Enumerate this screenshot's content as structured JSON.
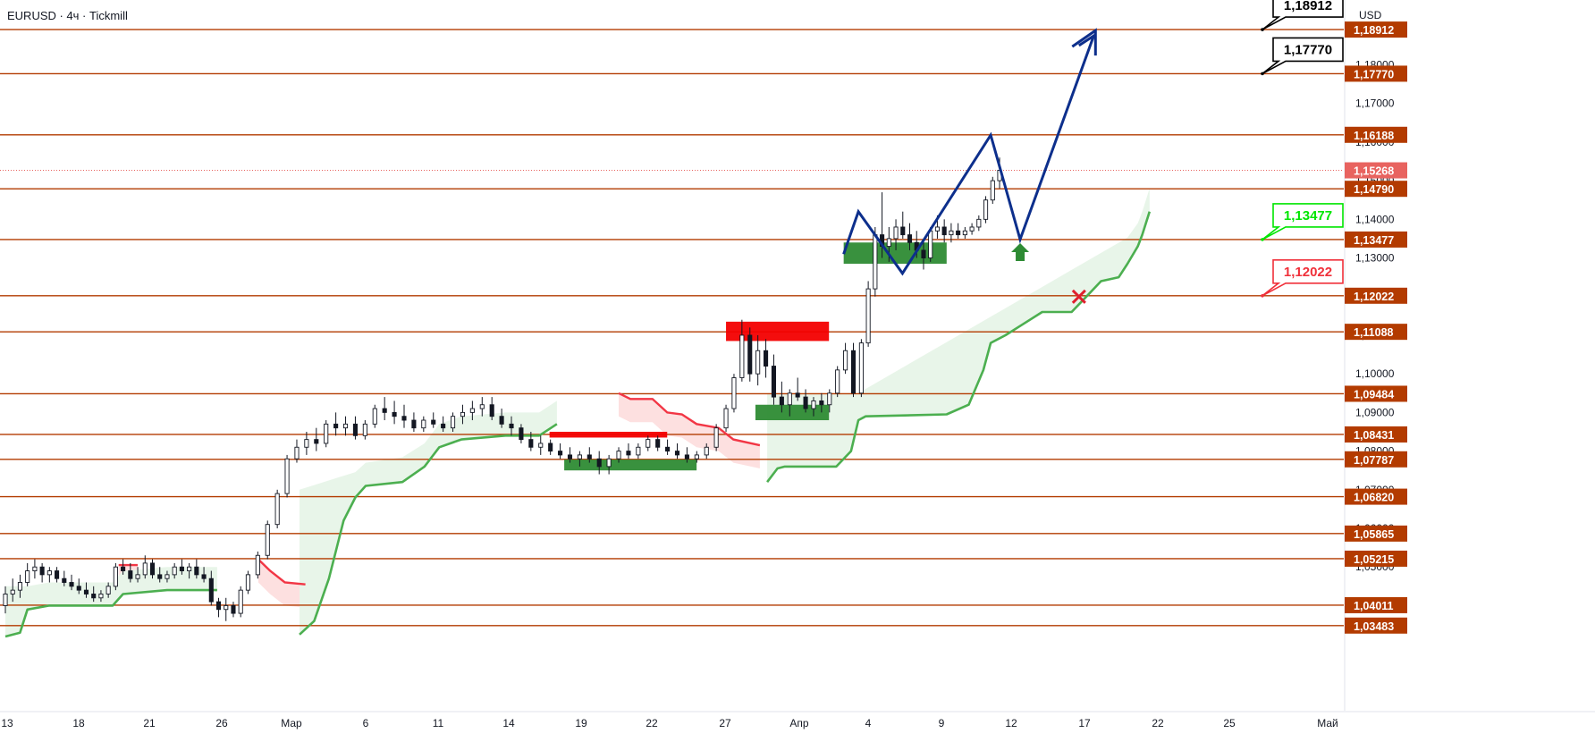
{
  "header": {
    "title": "EURUSD · 4ч · Tickmill",
    "currency": "USD"
  },
  "colors": {
    "level_line": "#b33b00",
    "level_tag_bg": "#b33b00",
    "price_tag_bg": "#e8635f",
    "bull": "#26a69a",
    "bear": "#ef5350",
    "candle_bull": "#ffffff",
    "candle_bear": "#131722",
    "supertrend_up": "#4caf50",
    "supertrend_down": "#f23645",
    "supertrend_up_fill": "#e8f5e9",
    "supertrend_down_fill": "#fde0e0",
    "zone_supply": "#f30000",
    "zone_demand": "#2e8b34",
    "projection": "#0d2f8c",
    "target_callout": "#000000",
    "support_callout": "#00e600",
    "stop_callout": "#f0303a",
    "axis_text": "#131722"
  },
  "chart_data": {
    "type": "candlestick",
    "symbol": "EURUSD",
    "timeframe": "4ч",
    "broker": "Tickmill",
    "y_axis": {
      "min": 1.032,
      "max": 1.194,
      "ticks": [
        "1,18000",
        "1,17000",
        "1,16000",
        "1,15000",
        "1,14000",
        "1,13000",
        "1,12000",
        "1,11000",
        "1,10000",
        "1,09000",
        "1,08000",
        "1,07000",
        "1,06000",
        "1,05000",
        "1,04000"
      ]
    },
    "x_axis": {
      "labels": [
        {
          "label": "13",
          "date": "2025-02-13"
        },
        {
          "label": "18",
          "date": "2025-02-18"
        },
        {
          "label": "21",
          "date": "2025-02-21"
        },
        {
          "label": "26",
          "date": "2025-02-26"
        },
        {
          "label": "Мар",
          "date": "2025-03-01"
        },
        {
          "label": "6",
          "date": "2025-03-06"
        },
        {
          "label": "11",
          "date": "2025-03-11"
        },
        {
          "label": "14",
          "date": "2025-03-14"
        },
        {
          "label": "19",
          "date": "2025-03-19"
        },
        {
          "label": "22",
          "date": "2025-03-22"
        },
        {
          "label": "27",
          "date": "2025-03-27"
        },
        {
          "label": "Апр",
          "date": "2025-04-01"
        },
        {
          "label": "4",
          "date": "2025-04-04"
        },
        {
          "label": "9",
          "date": "2025-04-09"
        },
        {
          "label": "12",
          "date": "2025-04-12"
        },
        {
          "label": "17",
          "date": "2025-04-17"
        },
        {
          "label": "22",
          "date": "2025-04-22"
        },
        {
          "label": "25",
          "date": "2025-04-25"
        },
        {
          "label": "Май",
          "date": "2025-05-01"
        }
      ]
    },
    "levels": [
      "1,18912",
      "1,17770",
      "1,16188",
      "1,14790",
      "1,13477",
      "1,12022",
      "1,11088",
      "1,09484",
      "1,08431",
      "1,07787",
      "1,06820",
      "1,05865",
      "1,05215",
      "1,04011",
      "1,03483"
    ],
    "current_price": "1,15268",
    "callouts": [
      {
        "text": "1,18912",
        "kind": "target"
      },
      {
        "text": "1,17770",
        "kind": "target"
      },
      {
        "text": "1,13477",
        "kind": "support"
      },
      {
        "text": "1,12022",
        "kind": "stop"
      }
    ],
    "zones": [
      {
        "kind": "supply",
        "from": "2025-04-03",
        "to": "2025-04-10",
        "low": 1.1085,
        "high": 1.1135
      },
      {
        "kind": "demand",
        "from": "2025-04-05",
        "to": "2025-04-10",
        "low": 1.088,
        "high": 1.092
      },
      {
        "kind": "supply",
        "from": "2025-03-22",
        "to": "2025-03-30",
        "low": 1.0835,
        "high": 1.085
      },
      {
        "kind": "demand",
        "from": "2025-03-23",
        "to": "2025-04-01",
        "low": 1.075,
        "high": 1.0778
      },
      {
        "kind": "demand",
        "from": "2025-04-11",
        "to": "2025-04-18",
        "low": 1.1285,
        "high": 1.134
      }
    ],
    "projection_path": [
      {
        "date": "2025-04-11",
        "price": 1.131
      },
      {
        "date": "2025-04-12",
        "price": 1.142
      },
      {
        "date": "2025-04-15",
        "price": 1.126
      },
      {
        "date": "2025-04-21",
        "price": 1.1618
      },
      {
        "date": "2025-04-23",
        "price": 1.1348
      },
      {
        "date": "2025-04-28",
        "price": 1.1875
      },
      {
        "date": "2025-04-27",
        "price": 1.185
      }
    ],
    "signals": [
      {
        "kind": "buy-arrow",
        "date": "2025-04-23",
        "price": 1.1315
      },
      {
        "kind": "stop-cross",
        "date": "2025-04-27",
        "price": 1.12
      }
    ],
    "supertrend": [
      {
        "date": "2025-02-13",
        "price": 1.032,
        "dir": "up"
      },
      {
        "date": "2025-02-15",
        "price": 1.04,
        "dir": "up"
      },
      {
        "date": "2025-02-19",
        "price": 1.04,
        "dir": "up"
      },
      {
        "date": "2025-02-20",
        "price": 1.0505,
        "dir": "down"
      },
      {
        "date": "2025-02-20.5",
        "price": 1.043,
        "dir": "up"
      },
      {
        "date": "2025-02-27",
        "price": 1.044,
        "dir": "up"
      }
    ],
    "candles": [
      {
        "d": 0,
        "o": 1.04,
        "h": 1.045,
        "l": 1.038,
        "c": 1.043
      },
      {
        "d": 0.5,
        "o": 1.043,
        "h": 1.047,
        "l": 1.041,
        "c": 1.044
      },
      {
        "d": 1,
        "o": 1.044,
        "h": 1.048,
        "l": 1.042,
        "c": 1.046
      },
      {
        "d": 1.5,
        "o": 1.046,
        "h": 1.051,
        "l": 1.045,
        "c": 1.049
      },
      {
        "d": 2,
        "o": 1.049,
        "h": 1.052,
        "l": 1.047,
        "c": 1.05
      },
      {
        "d": 2.5,
        "o": 1.05,
        "h": 1.051,
        "l": 1.046,
        "c": 1.048
      },
      {
        "d": 3,
        "o": 1.048,
        "h": 1.05,
        "l": 1.046,
        "c": 1.049
      },
      {
        "d": 3.5,
        "o": 1.049,
        "h": 1.05,
        "l": 1.046,
        "c": 1.047
      },
      {
        "d": 4,
        "o": 1.047,
        "h": 1.049,
        "l": 1.045,
        "c": 1.046
      },
      {
        "d": 4.5,
        "o": 1.046,
        "h": 1.048,
        "l": 1.044,
        "c": 1.045
      },
      {
        "d": 5,
        "o": 1.045,
        "h": 1.047,
        "l": 1.043,
        "c": 1.044
      },
      {
        "d": 5.5,
        "o": 1.044,
        "h": 1.046,
        "l": 1.042,
        "c": 1.043
      },
      {
        "d": 6,
        "o": 1.043,
        "h": 1.045,
        "l": 1.041,
        "c": 1.042
      },
      {
        "d": 6.5,
        "o": 1.042,
        "h": 1.044,
        "l": 1.041,
        "c": 1.043
      },
      {
        "d": 7,
        "o": 1.043,
        "h": 1.046,
        "l": 1.042,
        "c": 1.045
      },
      {
        "d": 7.5,
        "o": 1.045,
        "h": 1.051,
        "l": 1.044,
        "c": 1.05
      },
      {
        "d": 8,
        "o": 1.05,
        "h": 1.052,
        "l": 1.048,
        "c": 1.049
      },
      {
        "d": 8.5,
        "o": 1.049,
        "h": 1.051,
        "l": 1.046,
        "c": 1.047
      },
      {
        "d": 9,
        "o": 1.047,
        "h": 1.05,
        "l": 1.046,
        "c": 1.048
      },
      {
        "d": 9.5,
        "o": 1.048,
        "h": 1.053,
        "l": 1.047,
        "c": 1.051
      },
      {
        "d": 10,
        "o": 1.051,
        "h": 1.052,
        "l": 1.047,
        "c": 1.048
      },
      {
        "d": 10.5,
        "o": 1.048,
        "h": 1.05,
        "l": 1.046,
        "c": 1.047
      },
      {
        "d": 11,
        "o": 1.047,
        "h": 1.049,
        "l": 1.046,
        "c": 1.048
      },
      {
        "d": 11.5,
        "o": 1.048,
        "h": 1.051,
        "l": 1.047,
        "c": 1.05
      },
      {
        "d": 12,
        "o": 1.05,
        "h": 1.052,
        "l": 1.048,
        "c": 1.049
      },
      {
        "d": 12.5,
        "o": 1.049,
        "h": 1.051,
        "l": 1.047,
        "c": 1.05
      },
      {
        "d": 13,
        "o": 1.05,
        "h": 1.052,
        "l": 1.047,
        "c": 1.048
      },
      {
        "d": 13.5,
        "o": 1.048,
        "h": 1.05,
        "l": 1.046,
        "c": 1.047
      },
      {
        "d": 14,
        "o": 1.047,
        "h": 1.049,
        "l": 1.04,
        "c": 1.041
      },
      {
        "d": 14.5,
        "o": 1.041,
        "h": 1.042,
        "l": 1.037,
        "c": 1.039
      },
      {
        "d": 15,
        "o": 1.039,
        "h": 1.042,
        "l": 1.036,
        "c": 1.04
      },
      {
        "d": 15.5,
        "o": 1.04,
        "h": 1.041,
        "l": 1.037,
        "c": 1.038
      },
      {
        "d": 16,
        "o": 1.038,
        "h": 1.045,
        "l": 1.037,
        "c": 1.044
      },
      {
        "d": 16.5,
        "o": 1.044,
        "h": 1.049,
        "l": 1.043,
        "c": 1.048
      },
      {
        "d": 17,
        "o": 1.048,
        "h": 1.054,
        "l": 1.047,
        "c": 1.053
      },
      {
        "d": 17.5,
        "o": 1.053,
        "h": 1.062,
        "l": 1.052,
        "c": 1.061
      },
      {
        "d": 18,
        "o": 1.061,
        "h": 1.07,
        "l": 1.06,
        "c": 1.069
      },
      {
        "d": 18.5,
        "o": 1.069,
        "h": 1.079,
        "l": 1.068,
        "c": 1.078
      },
      {
        "d": 19,
        "o": 1.078,
        "h": 1.083,
        "l": 1.077,
        "c": 1.081
      },
      {
        "d": 19.5,
        "o": 1.081,
        "h": 1.085,
        "l": 1.079,
        "c": 1.083
      },
      {
        "d": 20,
        "o": 1.083,
        "h": 1.086,
        "l": 1.08,
        "c": 1.082
      },
      {
        "d": 20.5,
        "o": 1.082,
        "h": 1.088,
        "l": 1.081,
        "c": 1.087
      },
      {
        "d": 21,
        "o": 1.087,
        "h": 1.09,
        "l": 1.084,
        "c": 1.086
      },
      {
        "d": 21.5,
        "o": 1.086,
        "h": 1.089,
        "l": 1.084,
        "c": 1.087
      },
      {
        "d": 22,
        "o": 1.087,
        "h": 1.089,
        "l": 1.083,
        "c": 1.084
      },
      {
        "d": 22.5,
        "o": 1.084,
        "h": 1.088,
        "l": 1.083,
        "c": 1.087
      },
      {
        "d": 23,
        "o": 1.087,
        "h": 1.092,
        "l": 1.086,
        "c": 1.091
      },
      {
        "d": 23.5,
        "o": 1.091,
        "h": 1.094,
        "l": 1.088,
        "c": 1.09
      },
      {
        "d": 24,
        "o": 1.09,
        "h": 1.093,
        "l": 1.087,
        "c": 1.089
      },
      {
        "d": 24.5,
        "o": 1.089,
        "h": 1.092,
        "l": 1.086,
        "c": 1.088
      },
      {
        "d": 25,
        "o": 1.088,
        "h": 1.09,
        "l": 1.085,
        "c": 1.086
      },
      {
        "d": 25.5,
        "o": 1.086,
        "h": 1.089,
        "l": 1.085,
        "c": 1.088
      },
      {
        "d": 26,
        "o": 1.088,
        "h": 1.09,
        "l": 1.086,
        "c": 1.087
      },
      {
        "d": 26.5,
        "o": 1.087,
        "h": 1.089,
        "l": 1.085,
        "c": 1.086
      },
      {
        "d": 27,
        "o": 1.086,
        "h": 1.09,
        "l": 1.085,
        "c": 1.089
      },
      {
        "d": 27.5,
        "o": 1.089,
        "h": 1.092,
        "l": 1.087,
        "c": 1.09
      },
      {
        "d": 28,
        "o": 1.09,
        "h": 1.093,
        "l": 1.088,
        "c": 1.091
      },
      {
        "d": 28.5,
        "o": 1.091,
        "h": 1.094,
        "l": 1.089,
        "c": 1.092
      },
      {
        "d": 29,
        "o": 1.092,
        "h": 1.094,
        "l": 1.088,
        "c": 1.089
      },
      {
        "d": 29.5,
        "o": 1.089,
        "h": 1.091,
        "l": 1.086,
        "c": 1.087
      },
      {
        "d": 30,
        "o": 1.087,
        "h": 1.089,
        "l": 1.084,
        "c": 1.086
      },
      {
        "d": 30.5,
        "o": 1.086,
        "h": 1.087,
        "l": 1.082,
        "c": 1.083
      },
      {
        "d": 31,
        "o": 1.083,
        "h": 1.085,
        "l": 1.08,
        "c": 1.081
      },
      {
        "d": 31.5,
        "o": 1.081,
        "h": 1.084,
        "l": 1.079,
        "c": 1.082
      },
      {
        "d": 32,
        "o": 1.082,
        "h": 1.083,
        "l": 1.079,
        "c": 1.08
      },
      {
        "d": 32.5,
        "o": 1.08,
        "h": 1.082,
        "l": 1.078,
        "c": 1.079
      },
      {
        "d": 33,
        "o": 1.079,
        "h": 1.081,
        "l": 1.077,
        "c": 1.078
      },
      {
        "d": 33.5,
        "o": 1.078,
        "h": 1.08,
        "l": 1.076,
        "c": 1.079
      },
      {
        "d": 34,
        "o": 1.079,
        "h": 1.081,
        "l": 1.077,
        "c": 1.078
      },
      {
        "d": 34.5,
        "o": 1.078,
        "h": 1.08,
        "l": 1.074,
        "c": 1.076
      },
      {
        "d": 35,
        "o": 1.076,
        "h": 1.079,
        "l": 1.074,
        "c": 1.078
      },
      {
        "d": 35.5,
        "o": 1.078,
        "h": 1.081,
        "l": 1.077,
        "c": 1.08
      },
      {
        "d": 36,
        "o": 1.08,
        "h": 1.082,
        "l": 1.078,
        "c": 1.079
      },
      {
        "d": 36.5,
        "o": 1.079,
        "h": 1.082,
        "l": 1.078,
        "c": 1.081
      },
      {
        "d": 37,
        "o": 1.081,
        "h": 1.084,
        "l": 1.08,
        "c": 1.083
      },
      {
        "d": 37.5,
        "o": 1.083,
        "h": 1.084,
        "l": 1.08,
        "c": 1.081
      },
      {
        "d": 38,
        "o": 1.081,
        "h": 1.083,
        "l": 1.079,
        "c": 1.08
      },
      {
        "d": 38.5,
        "o": 1.08,
        "h": 1.082,
        "l": 1.078,
        "c": 1.079
      },
      {
        "d": 39,
        "o": 1.079,
        "h": 1.081,
        "l": 1.077,
        "c": 1.078
      },
      {
        "d": 39.5,
        "o": 1.078,
        "h": 1.08,
        "l": 1.077,
        "c": 1.079
      },
      {
        "d": 40,
        "o": 1.079,
        "h": 1.082,
        "l": 1.078,
        "c": 1.081
      },
      {
        "d": 40.5,
        "o": 1.081,
        "h": 1.087,
        "l": 1.08,
        "c": 1.086
      },
      {
        "d": 41,
        "o": 1.086,
        "h": 1.092,
        "l": 1.085,
        "c": 1.091
      },
      {
        "d": 41.5,
        "o": 1.091,
        "h": 1.1,
        "l": 1.09,
        "c": 1.099
      },
      {
        "d": 42,
        "o": 1.099,
        "h": 1.114,
        "l": 1.098,
        "c": 1.11
      },
      {
        "d": 42.5,
        "o": 1.11,
        "h": 1.112,
        "l": 1.098,
        "c": 1.1
      },
      {
        "d": 43,
        "o": 1.1,
        "h": 1.11,
        "l": 1.097,
        "c": 1.106
      },
      {
        "d": 43.5,
        "o": 1.106,
        "h": 1.109,
        "l": 1.099,
        "c": 1.102
      },
      {
        "d": 44,
        "o": 1.102,
        "h": 1.105,
        "l": 1.092,
        "c": 1.094
      },
      {
        "d": 44.5,
        "o": 1.094,
        "h": 1.098,
        "l": 1.09,
        "c": 1.092
      },
      {
        "d": 45,
        "o": 1.092,
        "h": 1.096,
        "l": 1.089,
        "c": 1.095
      },
      {
        "d": 45.5,
        "o": 1.095,
        "h": 1.099,
        "l": 1.093,
        "c": 1.094
      },
      {
        "d": 46,
        "o": 1.094,
        "h": 1.096,
        "l": 1.09,
        "c": 1.091
      },
      {
        "d": 46.5,
        "o": 1.091,
        "h": 1.094,
        "l": 1.089,
        "c": 1.093
      },
      {
        "d": 47,
        "o": 1.093,
        "h": 1.095,
        "l": 1.09,
        "c": 1.092
      },
      {
        "d": 47.5,
        "o": 1.092,
        "h": 1.096,
        "l": 1.09,
        "c": 1.095
      },
      {
        "d": 48,
        "o": 1.095,
        "h": 1.102,
        "l": 1.094,
        "c": 1.101
      },
      {
        "d": 48.5,
        "o": 1.101,
        "h": 1.108,
        "l": 1.1,
        "c": 1.106
      },
      {
        "d": 49,
        "o": 1.106,
        "h": 1.108,
        "l": 1.094,
        "c": 1.095
      },
      {
        "d": 49.5,
        "o": 1.095,
        "h": 1.109,
        "l": 1.094,
        "c": 1.108
      },
      {
        "d": 50,
        "o": 1.108,
        "h": 1.124,
        "l": 1.107,
        "c": 1.122
      },
      {
        "d": 50.5,
        "o": 1.122,
        "h": 1.138,
        "l": 1.12,
        "c": 1.136
      },
      {
        "d": 51,
        "o": 1.136,
        "h": 1.147,
        "l": 1.13,
        "c": 1.133
      },
      {
        "d": 51.5,
        "o": 1.133,
        "h": 1.138,
        "l": 1.129,
        "c": 1.135
      },
      {
        "d": 52,
        "o": 1.135,
        "h": 1.14,
        "l": 1.132,
        "c": 1.138
      },
      {
        "d": 52.5,
        "o": 1.138,
        "h": 1.142,
        "l": 1.135,
        "c": 1.136
      },
      {
        "d": 53,
        "o": 1.136,
        "h": 1.139,
        "l": 1.132,
        "c": 1.134
      },
      {
        "d": 53.5,
        "o": 1.134,
        "h": 1.137,
        "l": 1.13,
        "c": 1.132
      },
      {
        "d": 54,
        "o": 1.132,
        "h": 1.135,
        "l": 1.127,
        "c": 1.13
      },
      {
        "d": 54.5,
        "o": 1.13,
        "h": 1.138,
        "l": 1.129,
        "c": 1.137
      },
      {
        "d": 55,
        "o": 1.137,
        "h": 1.141,
        "l": 1.135,
        "c": 1.138
      },
      {
        "d": 55.5,
        "o": 1.138,
        "h": 1.14,
        "l": 1.134,
        "c": 1.136
      },
      {
        "d": 56,
        "o": 1.136,
        "h": 1.139,
        "l": 1.134,
        "c": 1.137
      },
      {
        "d": 56.5,
        "o": 1.137,
        "h": 1.139,
        "l": 1.135,
        "c": 1.136
      },
      {
        "d": 57,
        "o": 1.136,
        "h": 1.138,
        "l": 1.135,
        "c": 1.137
      },
      {
        "d": 57.5,
        "o": 1.137,
        "h": 1.139,
        "l": 1.136,
        "c": 1.138
      },
      {
        "d": 58,
        "o": 1.138,
        "h": 1.141,
        "l": 1.137,
        "c": 1.14
      },
      {
        "d": 58.5,
        "o": 1.14,
        "h": 1.146,
        "l": 1.139,
        "c": 1.145
      },
      {
        "d": 59,
        "o": 1.145,
        "h": 1.151,
        "l": 1.144,
        "c": 1.15
      },
      {
        "d": 59.5,
        "o": 1.15,
        "h": 1.156,
        "l": 1.148,
        "c": 1.1527
      }
    ]
  }
}
